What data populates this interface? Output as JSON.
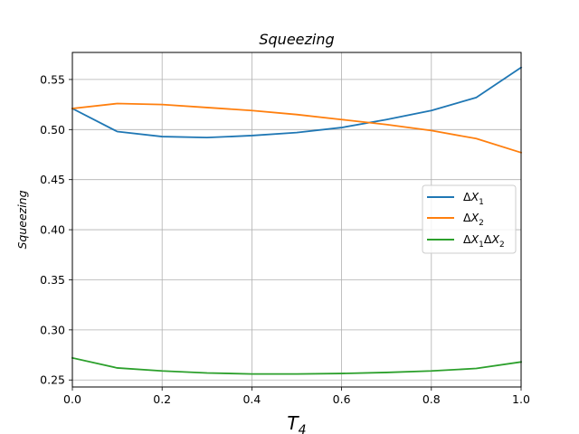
{
  "chart_data": {
    "type": "line",
    "title": "Squeezing",
    "ylabel": "Squeezing",
    "xlabel": "T4",
    "xlim": [
      0.0,
      1.0
    ],
    "ylim": [
      0.243,
      0.577
    ],
    "xticks": [
      "0.0",
      "0.2",
      "0.4",
      "0.6",
      "0.8",
      "1.0"
    ],
    "yticks": [
      "0.25",
      "0.30",
      "0.35",
      "0.40",
      "0.45",
      "0.50",
      "0.55"
    ],
    "grid": true,
    "legend_position": "center-right",
    "x": [
      0.0,
      0.1,
      0.2,
      0.3,
      0.4,
      0.5,
      0.6,
      0.7,
      0.8,
      0.9,
      1.0
    ],
    "series": [
      {
        "name": "ΔX1",
        "color": "#1f77b4",
        "values": [
          0.521,
          0.498,
          0.493,
          0.492,
          0.494,
          0.497,
          0.502,
          0.51,
          0.519,
          0.532,
          0.562
        ]
      },
      {
        "name": "ΔX2",
        "color": "#ff7f0e",
        "values": [
          0.521,
          0.526,
          0.525,
          0.522,
          0.519,
          0.515,
          0.51,
          0.505,
          0.499,
          0.491,
          0.477
        ]
      },
      {
        "name": "ΔX1ΔX2",
        "color": "#2ca02c",
        "values": [
          0.272,
          0.262,
          0.259,
          0.257,
          0.256,
          0.256,
          0.2565,
          0.2575,
          0.259,
          0.2615,
          0.268
        ]
      }
    ]
  }
}
